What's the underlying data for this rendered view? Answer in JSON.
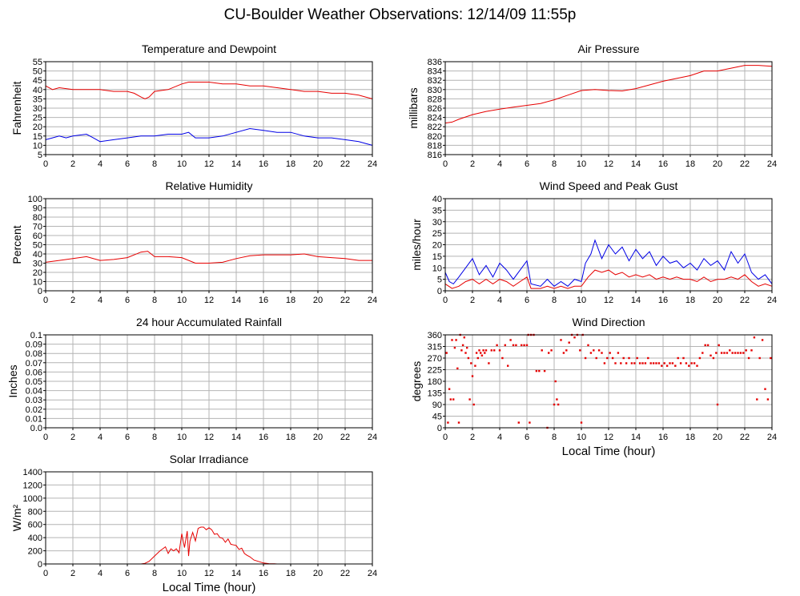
{
  "page": {
    "title": "CU-Boulder Weather Observations: 12/14/09 11:55p"
  },
  "chart_data": [
    {
      "id": "temp",
      "type": "line",
      "title": "Temperature and Dewpoint",
      "xlabel": "",
      "ylabel": "Fahrenheit",
      "xlim": [
        0,
        24
      ],
      "ylim": [
        5,
        55
      ],
      "xticks": [
        0,
        2,
        4,
        6,
        8,
        10,
        12,
        14,
        16,
        18,
        20,
        22,
        24
      ],
      "yticks": [
        5,
        10,
        15,
        20,
        25,
        30,
        35,
        40,
        45,
        50,
        55
      ],
      "grid": true,
      "series": [
        {
          "color": "#e60000",
          "x": [
            0,
            0.5,
            1,
            2,
            3,
            4,
            5,
            6,
            6.5,
            7,
            7.3,
            7.6,
            8,
            9,
            10,
            10.5,
            11,
            12,
            13,
            14,
            15,
            16,
            17,
            18,
            19,
            20,
            21,
            22,
            23,
            23.5,
            24
          ],
          "y": [
            42,
            40,
            41,
            40,
            40,
            40,
            39,
            39,
            38,
            36,
            35,
            36,
            39,
            40,
            43,
            44,
            44,
            44,
            43,
            43,
            42,
            42,
            41,
            40,
            39,
            39,
            38,
            38,
            37,
            36,
            35
          ]
        },
        {
          "color": "#0000e6",
          "x": [
            0,
            0.5,
            1,
            1.5,
            2,
            3,
            3.5,
            4,
            5,
            6,
            7,
            8,
            9,
            10,
            10.5,
            11,
            12,
            13,
            14,
            15,
            16,
            17,
            18,
            19,
            20,
            21,
            22,
            23,
            23.5,
            24
          ],
          "y": [
            13,
            14,
            15,
            14,
            15,
            16,
            14,
            12,
            13,
            14,
            15,
            15,
            16,
            16,
            17,
            14,
            14,
            15,
            17,
            19,
            18,
            17,
            17,
            15,
            14,
            14,
            13,
            12,
            11,
            10
          ]
        }
      ]
    },
    {
      "id": "pressure",
      "type": "line",
      "title": "Air Pressure",
      "xlabel": "",
      "ylabel": "millibars",
      "xlim": [
        0,
        24
      ],
      "ylim": [
        816,
        836
      ],
      "xticks": [
        0,
        2,
        4,
        6,
        8,
        10,
        12,
        14,
        16,
        18,
        20,
        22,
        24
      ],
      "yticks": [
        816,
        818,
        820,
        822,
        824,
        826,
        828,
        830,
        832,
        834,
        836
      ],
      "grid": true,
      "series": [
        {
          "color": "#e60000",
          "x": [
            0,
            0.5,
            1,
            2,
            3,
            4,
            5,
            6,
            7,
            8,
            9,
            10,
            11,
            12,
            13,
            14,
            15,
            16,
            17,
            18,
            19,
            20,
            21,
            22,
            23,
            24
          ],
          "y": [
            822.8,
            823.0,
            823.6,
            824.6,
            825.3,
            825.8,
            826.2,
            826.6,
            827.0,
            827.8,
            828.8,
            829.8,
            830.0,
            829.8,
            829.7,
            830.2,
            831.0,
            831.8,
            832.4,
            833.0,
            834.0,
            834.0,
            834.6,
            835.2,
            835.2,
            835.0
          ]
        }
      ]
    },
    {
      "id": "humidity",
      "type": "line",
      "title": "Relative Humidity",
      "xlabel": "",
      "ylabel": "Percent",
      "xlim": [
        0,
        24
      ],
      "ylim": [
        0,
        100
      ],
      "xticks": [
        0,
        2,
        4,
        6,
        8,
        10,
        12,
        14,
        16,
        18,
        20,
        22,
        24
      ],
      "yticks": [
        0,
        10,
        20,
        30,
        40,
        50,
        60,
        70,
        80,
        90,
        100
      ],
      "grid": true,
      "series": [
        {
          "color": "#e60000",
          "x": [
            0,
            1,
            2,
            3,
            4,
            5,
            6,
            7,
            7.5,
            8,
            9,
            10,
            11,
            12,
            13,
            14,
            15,
            16,
            17,
            18,
            19,
            20,
            21,
            22,
            23,
            24
          ],
          "y": [
            31,
            33,
            35,
            37,
            33,
            34,
            36,
            42,
            43,
            37,
            37,
            36,
            30,
            30,
            31,
            35,
            38,
            39,
            39,
            39,
            40,
            37,
            36,
            35,
            33,
            33
          ]
        }
      ]
    },
    {
      "id": "wind",
      "type": "line",
      "title": "Wind Speed and Peak Gust",
      "xlabel": "",
      "ylabel": "miles/hour",
      "xlim": [
        0,
        24
      ],
      "ylim": [
        0,
        40
      ],
      "xticks": [
        0,
        2,
        4,
        6,
        8,
        10,
        12,
        14,
        16,
        18,
        20,
        22,
        24
      ],
      "yticks": [
        0,
        5,
        10,
        15,
        20,
        25,
        30,
        35,
        40
      ],
      "grid": true,
      "series": [
        {
          "color": "#0000e6",
          "x": [
            0,
            0.3,
            0.6,
            1,
            1.5,
            2,
            2.5,
            3,
            3.5,
            4,
            4.5,
            5,
            5.5,
            6,
            6.3,
            7,
            7.5,
            8,
            8.5,
            9,
            9.5,
            10,
            10.3,
            10.7,
            11,
            11.5,
            12,
            12.5,
            13,
            13.5,
            14,
            14.5,
            15,
            15.5,
            16,
            16.5,
            17,
            17.5,
            18,
            18.5,
            19,
            19.5,
            20,
            20.5,
            21,
            21.5,
            22,
            22.5,
            23,
            23.5,
            24
          ],
          "y": [
            8,
            4,
            3,
            6,
            10,
            14,
            7,
            11,
            6,
            12,
            9,
            5,
            9,
            13,
            3,
            2,
            5,
            2,
            4,
            2,
            5,
            4,
            12,
            16,
            22,
            14,
            20,
            16,
            19,
            13,
            18,
            14,
            17,
            11,
            15,
            12,
            13,
            10,
            12,
            9,
            14,
            11,
            13,
            9,
            17,
            12,
            16,
            8,
            5,
            7,
            3
          ]
        },
        {
          "color": "#e60000",
          "x": [
            0,
            0.5,
            1,
            1.5,
            2,
            2.5,
            3,
            3.5,
            4,
            4.5,
            5,
            5.5,
            6,
            6.3,
            7,
            7.5,
            8,
            8.5,
            9,
            9.5,
            10,
            10.5,
            11,
            11.5,
            12,
            12.5,
            13,
            13.5,
            14,
            14.5,
            15,
            15.5,
            16,
            16.5,
            17,
            17.5,
            18,
            18.5,
            19,
            19.5,
            20,
            20.5,
            21,
            21.5,
            22,
            22.5,
            23,
            23.5,
            24
          ],
          "y": [
            3,
            1,
            2,
            4,
            5,
            3,
            5,
            3,
            5,
            4,
            2,
            4,
            6,
            1,
            1,
            2,
            1,
            2,
            1,
            2,
            2,
            6,
            9,
            8,
            9,
            7,
            8,
            6,
            7,
            6,
            7,
            5,
            6,
            5,
            6,
            5,
            5,
            4,
            6,
            4,
            5,
            5,
            6,
            5,
            7,
            4,
            2,
            3,
            2
          ]
        }
      ]
    },
    {
      "id": "rain",
      "type": "line",
      "title": "24 hour Accumulated Rainfall",
      "xlabel": "",
      "ylabel": "Inches",
      "xlim": [
        0,
        24
      ],
      "ylim": [
        0,
        0.1
      ],
      "xticks": [
        0,
        2,
        4,
        6,
        8,
        10,
        12,
        14,
        16,
        18,
        20,
        22,
        24
      ],
      "yticks": [
        0.0,
        0.01,
        0.02,
        0.03,
        0.04,
        0.05,
        0.06,
        0.07,
        0.08,
        0.09,
        0.1
      ],
      "ytick_labels": [
        "0.0",
        "0.01",
        "0.02",
        "0.03",
        "0.04",
        "0.05",
        "0.06",
        "0.07",
        "0.08",
        "0.09",
        "0.1"
      ],
      "grid": true,
      "series": [
        {
          "color": "#e60000",
          "x": [
            0,
            24
          ],
          "y": [
            0,
            0
          ]
        }
      ]
    },
    {
      "id": "winddir",
      "type": "scatter",
      "title": "Wind Direction",
      "xlabel": "Local Time (hour)",
      "ylabel": "degrees",
      "xlim": [
        0,
        24
      ],
      "ylim": [
        0,
        360
      ],
      "xticks": [
        0,
        2,
        4,
        6,
        8,
        10,
        12,
        14,
        16,
        18,
        20,
        22,
        24
      ],
      "yticks": [
        0,
        45,
        90,
        135,
        180,
        225,
        270,
        315,
        360
      ],
      "grid": true,
      "series": [
        {
          "color": "#e60000",
          "x": [
            0.1,
            0.2,
            0.3,
            0.4,
            0.5,
            0.6,
            0.7,
            0.8,
            0.9,
            1.0,
            1.1,
            1.2,
            1.3,
            1.4,
            1.5,
            1.6,
            1.7,
            1.8,
            1.9,
            2.0,
            2.1,
            2.2,
            2.3,
            2.4,
            2.5,
            2.6,
            2.7,
            2.8,
            2.9,
            3.0,
            3.2,
            3.4,
            3.6,
            3.8,
            4.0,
            4.2,
            4.4,
            4.6,
            4.8,
            5.0,
            5.2,
            5.4,
            5.6,
            5.8,
            6.0,
            6.1,
            6.2,
            6.3,
            6.5,
            6.7,
            6.9,
            7.1,
            7.3,
            7.5,
            7.6,
            7.8,
            8.0,
            8.1,
            8.2,
            8.3,
            8.5,
            8.7,
            8.9,
            9.1,
            9.3,
            9.5,
            9.7,
            9.9,
            10.0,
            10.1,
            10.3,
            10.5,
            10.7,
            10.9,
            11.1,
            11.3,
            11.5,
            11.7,
            11.9,
            12.1,
            12.3,
            12.5,
            12.7,
            12.9,
            13.1,
            13.3,
            13.5,
            13.7,
            13.9,
            14.1,
            14.3,
            14.5,
            14.7,
            14.9,
            15.1,
            15.3,
            15.5,
            15.7,
            15.9,
            16.1,
            16.3,
            16.5,
            16.7,
            16.9,
            17.1,
            17.3,
            17.5,
            17.7,
            17.9,
            18.1,
            18.3,
            18.5,
            18.7,
            18.9,
            19.1,
            19.3,
            19.5,
            19.7,
            19.9,
            20.0,
            20.1,
            20.3,
            20.5,
            20.7,
            20.9,
            21.1,
            21.3,
            21.5,
            21.7,
            21.9,
            22.1,
            22.3,
            22.5,
            22.7,
            22.9,
            23.1,
            23.3,
            23.5,
            23.7,
            23.9
          ],
          "y": [
            290,
            20,
            150,
            110,
            340,
            110,
            310,
            340,
            230,
            20,
            360,
            300,
            320,
            350,
            290,
            310,
            270,
            110,
            250,
            200,
            90,
            240,
            290,
            270,
            300,
            290,
            280,
            300,
            290,
            300,
            250,
            300,
            300,
            320,
            300,
            270,
            320,
            240,
            340,
            320,
            320,
            20,
            320,
            320,
            320,
            360,
            20,
            360,
            360,
            220,
            220,
            300,
            220,
            0,
            290,
            300,
            90,
            180,
            110,
            90,
            340,
            290,
            300,
            330,
            360,
            350,
            360,
            300,
            20,
            360,
            270,
            320,
            290,
            300,
            270,
            300,
            290,
            250,
            270,
            290,
            270,
            250,
            290,
            250,
            270,
            250,
            270,
            250,
            250,
            270,
            250,
            250,
            250,
            270,
            250,
            250,
            250,
            250,
            240,
            250,
            240,
            250,
            250,
            240,
            270,
            250,
            270,
            250,
            240,
            250,
            250,
            240,
            270,
            290,
            320,
            320,
            280,
            270,
            290,
            90,
            320,
            290,
            290,
            290,
            300,
            290,
            290,
            290,
            290,
            290,
            300,
            270,
            300,
            350,
            110,
            270,
            340,
            150,
            110,
            270
          ]
        }
      ]
    },
    {
      "id": "solar",
      "type": "line",
      "title": "Solar Irradiance",
      "xlabel": "Local Time (hour)",
      "ylabel": "W/m²",
      "xlim": [
        0,
        24
      ],
      "ylim": [
        0,
        1400
      ],
      "xticks": [
        0,
        2,
        4,
        6,
        8,
        10,
        12,
        14,
        16,
        18,
        20,
        22,
        24
      ],
      "yticks": [
        0,
        200,
        400,
        600,
        800,
        1000,
        1200,
        1400
      ],
      "grid": true,
      "series": [
        {
          "color": "#e60000",
          "x": [
            0,
            7.0,
            7.3,
            7.6,
            8.0,
            8.4,
            8.8,
            9.0,
            9.2,
            9.4,
            9.6,
            9.8,
            10.0,
            10.2,
            10.4,
            10.5,
            10.6,
            10.8,
            11.0,
            11.2,
            11.4,
            11.6,
            11.8,
            12.0,
            12.2,
            12.4,
            12.6,
            12.8,
            13.0,
            13.2,
            13.4,
            13.6,
            13.8,
            14.0,
            14.2,
            14.4,
            14.6,
            14.8,
            15.0,
            15.3,
            15.6,
            16.0,
            16.4,
            16.8,
            17.0,
            24
          ],
          "y": [
            0,
            0,
            10,
            40,
            120,
            200,
            260,
            160,
            230,
            200,
            230,
            170,
            460,
            250,
            500,
            120,
            350,
            480,
            350,
            540,
            560,
            560,
            520,
            550,
            520,
            450,
            460,
            400,
            390,
            330,
            380,
            300,
            290,
            280,
            220,
            240,
            160,
            130,
            110,
            60,
            40,
            15,
            5,
            2,
            0,
            0
          ]
        }
      ]
    }
  ]
}
